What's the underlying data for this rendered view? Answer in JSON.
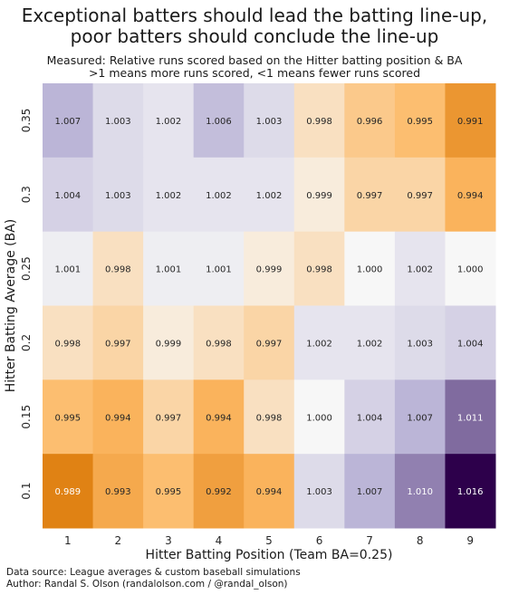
{
  "chart_data": {
    "type": "heatmap",
    "title": "Exceptional batters should lead the batting line-up,\npoor batters should conclude the line-up",
    "subtitle": "Measured: Relative runs scored based on the Hitter batting position & BA\n>1 means more runs scored, <1 means fewer runs scored",
    "xlabel": "Hitter Batting Position (Team BA=0.25)",
    "ylabel": "Hitter Batting Average (BA)",
    "x": [
      "1",
      "2",
      "3",
      "4",
      "5",
      "6",
      "7",
      "8",
      "9"
    ],
    "y": [
      "0.35",
      "0.3",
      "0.25",
      "0.2",
      "0.15",
      "0.1"
    ],
    "values": [
      [
        1.007,
        1.003,
        1.002,
        1.006,
        1.003,
        0.998,
        0.996,
        0.995,
        0.991
      ],
      [
        1.004,
        1.003,
        1.002,
        1.002,
        1.002,
        0.999,
        0.997,
        0.997,
        0.994
      ],
      [
        1.001,
        0.998,
        1.001,
        1.001,
        0.999,
        0.998,
        1.0,
        1.002,
        1.0
      ],
      [
        0.998,
        0.997,
        0.999,
        0.998,
        0.997,
        1.002,
        1.002,
        1.003,
        1.004
      ],
      [
        0.995,
        0.994,
        0.997,
        0.994,
        0.998,
        1.0,
        1.004,
        1.007,
        1.011
      ],
      [
        0.989,
        0.993,
        0.995,
        0.992,
        0.994,
        1.003,
        1.007,
        1.01,
        1.016
      ]
    ],
    "colormap": [
      "#e08214",
      "#f7f7f7",
      "#2d004b"
    ],
    "color_range": [
      0.989,
      1.016
    ],
    "color_center": 1.0
  },
  "footer": {
    "source": "Data source: League averages & custom baseball simulations",
    "author": "Author: Randal S. Olson (randalolson.com / @randal_olson)"
  }
}
